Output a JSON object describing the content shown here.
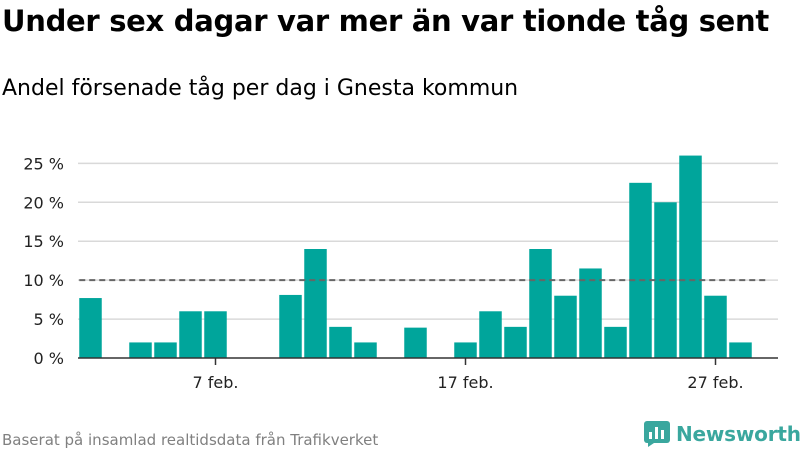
{
  "header": {
    "title": "Under sex dagar var mer än var tionde tåg sent",
    "subtitle": "Andel försenade tåg per dag i Gnesta kommun"
  },
  "footer": {
    "source": "Baserat på insamlad realtidsdata från Trafikverket",
    "brand": "Newsworthy"
  },
  "colors": {
    "bar": "#00a59b",
    "grid": "#d9d9d9",
    "threshold": "#666666",
    "brand": "#3aa79e"
  },
  "icons": {
    "brand_logo": "newsworthy-logo-icon"
  },
  "chart_data": {
    "type": "bar",
    "title": "Andel försenade tåg per dag i Gnesta kommun",
    "xlabel": "",
    "ylabel": "",
    "ylim": [
      0,
      28
    ],
    "yticks": [
      0,
      5,
      10,
      15,
      20,
      25
    ],
    "ytick_labels": [
      "0 %",
      "5 %",
      "10 %",
      "15 %",
      "20 %",
      "25 %"
    ],
    "xlim": [
      1.5,
      29.5
    ],
    "xticks": [
      7,
      17,
      27
    ],
    "xtick_labels": [
      "7 feb.",
      "17 feb.",
      "27 feb."
    ],
    "threshold": 10,
    "grid": true,
    "x": [
      2,
      3,
      4,
      5,
      6,
      7,
      8,
      9,
      10,
      11,
      12,
      13,
      14,
      15,
      16,
      17,
      18,
      19,
      20,
      21,
      22,
      23,
      24,
      25,
      26,
      27,
      28,
      29
    ],
    "values": [
      7.7,
      0,
      2,
      2,
      6,
      6,
      0,
      0,
      8.1,
      14,
      4,
      2,
      0,
      3.9,
      0,
      2,
      6,
      4,
      14,
      8,
      11.5,
      4,
      22.5,
      20,
      26,
      8,
      2,
      null
    ]
  }
}
